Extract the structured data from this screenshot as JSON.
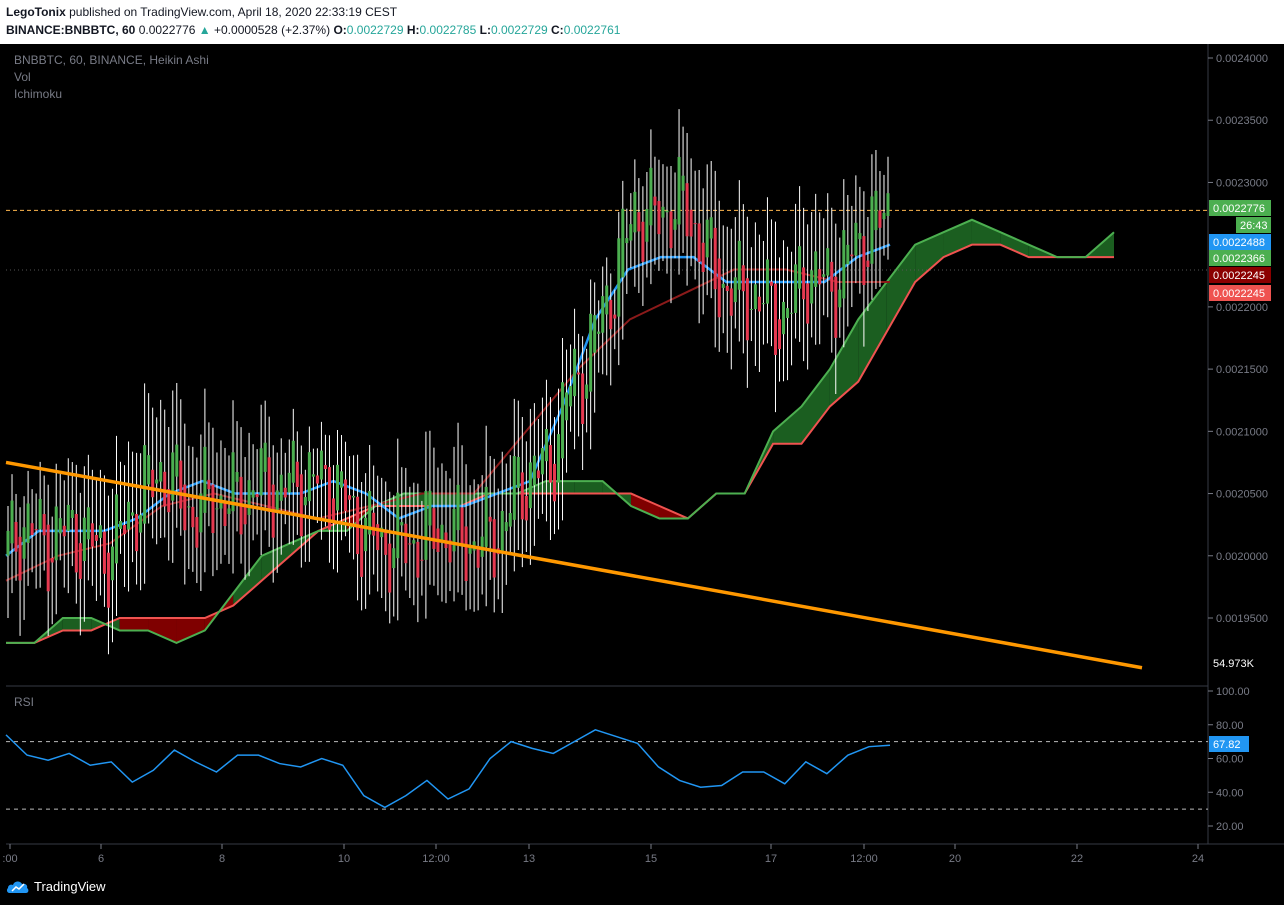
{
  "header": {
    "author": "LegoTonix",
    "published_text": "published on TradingView.com, April 18, 2020 22:33:19 CEST",
    "symbol": "BINANCE:BNBBTC, 60",
    "last": "0.0022776",
    "change": "+0.0000528 (+2.37%)",
    "o_label": "O:",
    "o_value": "0.0022729",
    "h_label": "H:",
    "h_value": "0.0022785",
    "l_label": "L:",
    "l_value": "0.0022729",
    "c_label": "C:",
    "c_value": "0.0022761"
  },
  "legend": {
    "main": "BNBBTC, 60, BINANCE, Heikin Ashi",
    "vol": "Vol",
    "ichimoku": "Ichimoku",
    "rsi": "RSI"
  },
  "price_labels": {
    "current": "0.0022776",
    "countdown": "26:43",
    "blue": "0.0022488",
    "green": "0.0022366",
    "red1": "0.0022245",
    "red2": "0.0022245",
    "vol": "54.973K",
    "rsi": "67.82"
  },
  "footer": {
    "brand": "TradingView"
  },
  "colors": {
    "background": "#000000",
    "up_candle": "#4caf50",
    "down_candle": "#e53950",
    "wick": "#ffffff",
    "tenkan": "#2196f3",
    "kijun": "#8b1a1a",
    "senkou_a": "#4caf50",
    "senkou_b": "#ef5350",
    "cloud_bull": "#1b5e20",
    "cloud_bear": "#7f0000",
    "trendline": "#ff9800",
    "rsi": "#2196f3",
    "current_price_line": "#ffb74d"
  },
  "chart_data": [
    {
      "type": "candlestick",
      "title": "BNBBTC, 60, BINANCE, Heikin Ashi",
      "x_ticks": [
        ":00",
        "6",
        "8",
        "10",
        "12:00",
        "13",
        "15",
        "17",
        "12:00",
        "20",
        "22",
        "24"
      ],
      "y_ticks": [
        "0.0019500",
        "0.0020000",
        "0.0020500",
        "0.0021000",
        "0.0021500",
        "0.0022000",
        "0.0023000",
        "0.0023500",
        "0.0024000"
      ],
      "ylim": [
        0.00191,
        0.00242
      ],
      "current_price": 0.0022776,
      "series": [
        {
          "name": "Heikin Ashi close (approx)",
          "values": [
            0.002,
            0.00203,
            0.00201,
            0.00202,
            0.00202,
            0.00201,
            0.002,
            0.00203,
            0.00205,
            0.00207,
            0.00205,
            0.00203,
            0.00205,
            0.00204,
            0.00205,
            0.00206,
            0.00205,
            0.00206,
            0.00206,
            0.00206,
            0.00204,
            0.00202,
            0.00201,
            0.00201,
            0.00201,
            0.00202,
            0.00202,
            0.00201,
            0.00201,
            0.00202,
            0.00205,
            0.00207,
            0.00207,
            0.00213,
            0.00215,
            0.00219,
            0.00223,
            0.00228,
            0.00227,
            0.00228,
            0.00228,
            0.00225,
            0.00222,
            0.00221,
            0.00221,
            0.0022,
            0.00219,
            0.00223,
            0.00222,
            0.00222,
            0.00225,
            0.00226,
            0.00228
          ]
        },
        {
          "name": "Tenkan",
          "values": [
            0.002,
            0.00202,
            0.00202,
            0.00202,
            0.00203,
            0.00205,
            0.00206,
            0.00205,
            0.00205,
            0.00205,
            0.00206,
            0.00205,
            0.00203,
            0.00204,
            0.00204,
            0.00205,
            0.00206,
            0.00212,
            0.00219,
            0.00223,
            0.00224,
            0.00224,
            0.00222,
            0.00222,
            0.00222,
            0.00222,
            0.00224,
            0.00225
          ]
        },
        {
          "name": "Kijun",
          "values": [
            0.00198,
            0.002,
            0.00201,
            0.00204,
            0.00205,
            0.00204,
            0.00203,
            0.00204,
            0.00205,
            0.00205,
            0.0021,
            0.00215,
            0.00219,
            0.00221,
            0.00223,
            0.00223,
            0.00222,
            0.00222
          ]
        }
      ],
      "trendline": {
        "from": [
          0,
          0.002075
        ],
        "to": [
          1,
          0.00191
        ]
      }
    },
    {
      "type": "line",
      "title": "RSI",
      "y_ticks": [
        "100.00",
        "80.00",
        "60.00",
        "40.00",
        "20.00"
      ],
      "ylim": [
        10,
        100
      ],
      "bands": [
        70,
        30
      ],
      "series": [
        {
          "name": "RSI",
          "values": [
            74,
            62,
            59,
            63,
            56,
            58,
            46,
            53,
            65,
            58,
            52,
            62,
            62,
            57,
            55,
            60,
            56,
            38,
            31,
            38,
            47,
            36,
            42,
            60,
            70,
            66,
            63,
            70,
            77,
            73,
            69,
            55,
            47,
            43,
            44,
            52,
            52,
            45,
            58,
            51,
            62,
            67,
            67.82
          ]
        }
      ],
      "current": 67.82
    }
  ]
}
